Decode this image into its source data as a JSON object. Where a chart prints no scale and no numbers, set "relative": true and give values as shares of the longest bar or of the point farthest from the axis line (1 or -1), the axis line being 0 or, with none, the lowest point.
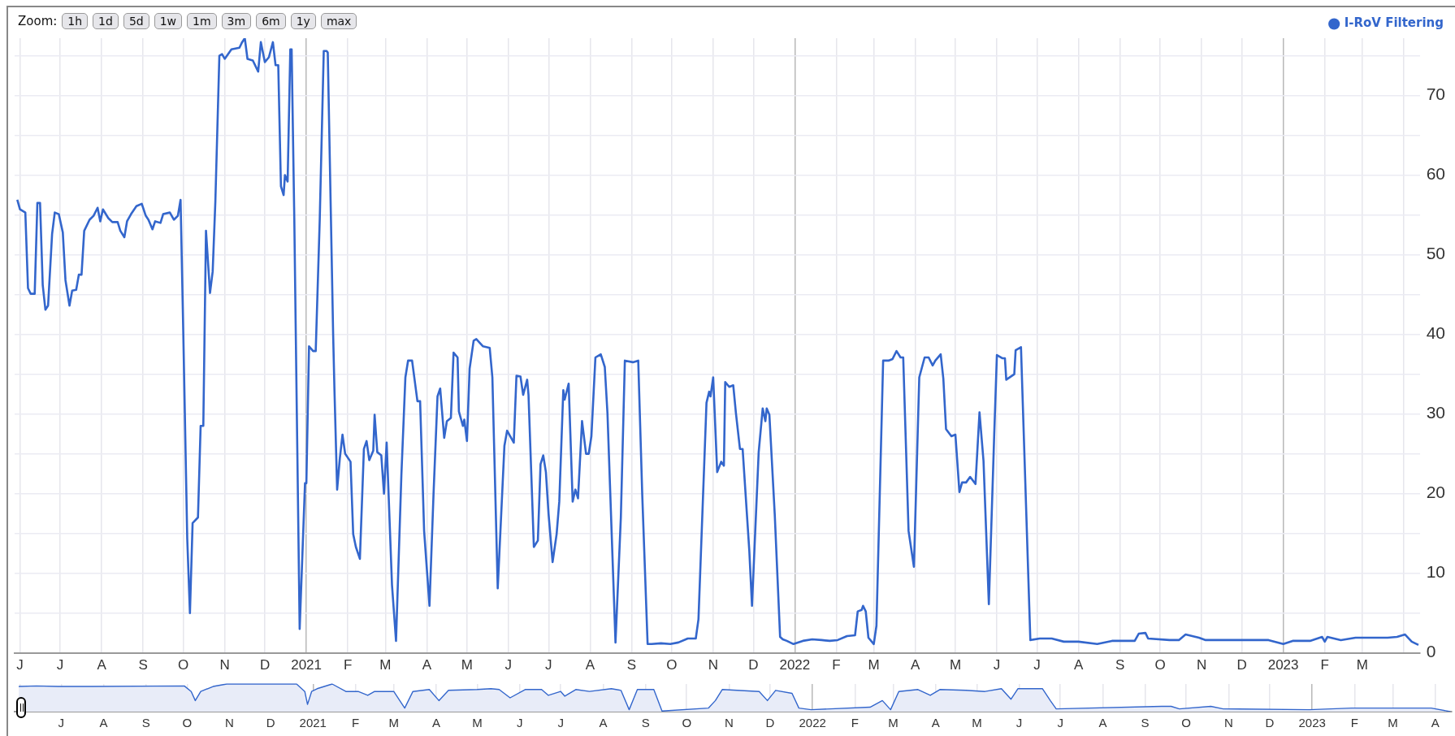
{
  "chart_data": [
    {
      "type": "line",
      "annotations": [
        "Zoom:",
        "1h",
        "1d",
        "5d",
        "1w",
        "1m",
        "3m",
        "6m",
        "1y",
        "max"
      ],
      "legend": "top right",
      "grid": true,
      "xlim": [
        "2020-05-28",
        "2023-04-13"
      ],
      "xticks": [
        {
          "value": "2020-06-01",
          "label": "J"
        },
        {
          "value": "2020-07-01",
          "label": "J"
        },
        {
          "value": "2020-08-01",
          "label": "A"
        },
        {
          "value": "2020-09-01",
          "label": "S"
        },
        {
          "value": "2020-10-01",
          "label": "O"
        },
        {
          "value": "2020-11-01",
          "label": "N"
        },
        {
          "value": "2020-12-01",
          "label": "D"
        },
        {
          "value": "2021-01-01",
          "label": "2021"
        },
        {
          "value": "2021-02-01",
          "label": "F"
        },
        {
          "value": "2021-03-01",
          "label": "M"
        },
        {
          "value": "2021-04-01",
          "label": "A"
        },
        {
          "value": "2021-05-01",
          "label": "M"
        },
        {
          "value": "2021-06-01",
          "label": "J"
        },
        {
          "value": "2021-07-01",
          "label": "J"
        },
        {
          "value": "2021-08-01",
          "label": "A"
        },
        {
          "value": "2021-09-01",
          "label": "S"
        },
        {
          "value": "2021-10-01",
          "label": "O"
        },
        {
          "value": "2021-11-01",
          "label": "N"
        },
        {
          "value": "2021-12-01",
          "label": "D"
        },
        {
          "value": "2022-01-01",
          "label": "2022"
        },
        {
          "value": "2022-02-01",
          "label": "F"
        },
        {
          "value": "2022-03-01",
          "label": "M"
        },
        {
          "value": "2022-04-01",
          "label": "A"
        },
        {
          "value": "2022-05-01",
          "label": "M"
        },
        {
          "value": "2022-06-01",
          "label": "J"
        },
        {
          "value": "2022-07-01",
          "label": "J"
        },
        {
          "value": "2022-08-01",
          "label": "A"
        },
        {
          "value": "2022-09-01",
          "label": "S"
        },
        {
          "value": "2022-10-01",
          "label": "O"
        },
        {
          "value": "2022-11-01",
          "label": "N"
        },
        {
          "value": "2022-12-01",
          "label": "D"
        },
        {
          "value": "2023-01-01",
          "label": "2023"
        },
        {
          "value": "2023-02-01",
          "label": "F"
        },
        {
          "value": "2023-03-01",
          "label": "M"
        },
        {
          "value": "2023-04-01",
          "label": null
        }
      ],
      "ylim": [
        0,
        77.2
      ],
      "yticks": [
        0,
        {
          "value": 5,
          "label": null
        },
        10,
        {
          "value": 15,
          "label": null
        },
        20,
        {
          "value": 25,
          "label": null
        },
        30,
        {
          "value": 35,
          "label": null
        },
        40,
        {
          "value": 45,
          "label": null
        },
        50,
        {
          "value": 55,
          "label": null
        },
        60,
        {
          "value": 65,
          "label": null
        },
        70,
        {
          "value": 75,
          "label": null
        }
      ],
      "series": [
        {
          "name": "I-RoV Filtering",
          "color": "#3366cc",
          "x": [
            "2020-05-30",
            "2020-06-01",
            "2020-06-05",
            "2020-06-07",
            "2020-06-09",
            "2020-06-12",
            "2020-06-14",
            "2020-06-16",
            "2020-06-18",
            "2020-06-20",
            "2020-06-22",
            "2020-06-25",
            "2020-06-27",
            "2020-06-30",
            "2020-07-03",
            "2020-07-05",
            "2020-07-08",
            "2020-07-10",
            "2020-07-13",
            "2020-07-15",
            "2020-07-17",
            "2020-07-19",
            "2020-07-23",
            "2020-07-26",
            "2020-07-29",
            "2020-07-31",
            "2020-08-02",
            "2020-08-06",
            "2020-08-09",
            "2020-08-13",
            "2020-08-15",
            "2020-08-18",
            "2020-08-20",
            "2020-08-23",
            "2020-08-27",
            "2020-08-31",
            "2020-09-03",
            "2020-09-05",
            "2020-09-08",
            "2020-09-10",
            "2020-09-14",
            "2020-09-16",
            "2020-09-21",
            "2020-09-24",
            "2020-09-27",
            "2020-09-29",
            "2020-10-01",
            "2020-10-04",
            "2020-10-06",
            "2020-10-08",
            "2020-10-12",
            "2020-10-14",
            "2020-10-16",
            "2020-10-18",
            "2020-10-21",
            "2020-10-23",
            "2020-10-25",
            "2020-10-28",
            "2020-10-30",
            "2020-11-01",
            "2020-11-06",
            "2020-11-12",
            "2020-11-14",
            "2020-11-16",
            "2020-11-18",
            "2020-11-22",
            "2020-11-26",
            "2020-11-28",
            "2020-12-01",
            "2020-12-04",
            "2020-12-07",
            "2020-12-09",
            "2020-12-11",
            "2020-12-13",
            "2020-12-15",
            "2020-12-16",
            "2020-12-18",
            "2020-12-20",
            "2020-12-21",
            "2020-12-23",
            "2020-12-24",
            "2020-12-27",
            "2020-12-31",
            "2021-01-01",
            "2021-01-03",
            "2021-01-06",
            "2021-01-08",
            "2021-01-11",
            "2021-01-14",
            "2021-01-16",
            "2021-01-17",
            "2021-01-21",
            "2021-01-22",
            "2021-01-24",
            "2021-01-26",
            "2021-01-28",
            "2021-01-30",
            "2021-02-03",
            "2021-02-05",
            "2021-02-07",
            "2021-02-10",
            "2021-02-13",
            "2021-02-15",
            "2021-02-17",
            "2021-02-20",
            "2021-02-21",
            "2021-02-23",
            "2021-02-26",
            "2021-02-28",
            "2021-03-02",
            "2021-03-06",
            "2021-03-09",
            "2021-03-13",
            "2021-03-16",
            "2021-03-18",
            "2021-03-21",
            "2021-03-25",
            "2021-03-27",
            "2021-03-30",
            "2021-04-03",
            "2021-04-06",
            "2021-04-09",
            "2021-04-11",
            "2021-04-14",
            "2021-04-16",
            "2021-04-19",
            "2021-04-21",
            "2021-04-24",
            "2021-04-25",
            "2021-04-28",
            "2021-04-29",
            "2021-05-01",
            "2021-05-03",
            "2021-05-06",
            "2021-05-08",
            "2021-05-13",
            "2021-05-18",
            "2021-05-20",
            "2021-05-24",
            "2021-05-29",
            "2021-05-31",
            "2021-06-05",
            "2021-06-07",
            "2021-06-10",
            "2021-06-12",
            "2021-06-15",
            "2021-06-16",
            "2021-06-20",
            "2021-06-23",
            "2021-06-25",
            "2021-06-27",
            "2021-06-29",
            "2021-07-01",
            "2021-07-04",
            "2021-07-07",
            "2021-07-09",
            "2021-07-12",
            "2021-07-13",
            "2021-07-16",
            "2021-07-19",
            "2021-07-21",
            "2021-07-23",
            "2021-07-26",
            "2021-07-29",
            "2021-07-31",
            "2021-08-02",
            "2021-08-05",
            "2021-08-07",
            "2021-08-09",
            "2021-08-12",
            "2021-08-14",
            "2021-08-20",
            "2021-08-24",
            "2021-08-27",
            "2021-09-02",
            "2021-09-06",
            "2021-09-09",
            "2021-09-13",
            "2021-09-16",
            "2021-09-23",
            "2021-09-30",
            "2021-10-06",
            "2021-10-13",
            "2021-10-19",
            "2021-10-21",
            "2021-10-27",
            "2021-10-29",
            "2021-10-30",
            "2021-11-01",
            "2021-11-04",
            "2021-11-07",
            "2021-11-09",
            "2021-11-10",
            "2021-11-13",
            "2021-11-16",
            "2021-11-18",
            "2021-11-21",
            "2021-11-23",
            "2021-11-28",
            "2021-11-30",
            "2021-12-05",
            "2021-12-08",
            "2021-12-10",
            "2021-12-11",
            "2021-12-13",
            "2021-12-17",
            "2021-12-21",
            "2021-12-23",
            "2021-12-26",
            "2021-12-31",
            "2022-01-07",
            "2022-01-14",
            "2022-01-21",
            "2022-01-27",
            "2022-02-02",
            "2022-02-09",
            "2022-02-15",
            "2022-02-17",
            "2022-02-20",
            "2022-02-21",
            "2022-02-23",
            "2022-02-25",
            "2022-03-01",
            "2022-03-03",
            "2022-03-08",
            "2022-03-12",
            "2022-03-15",
            "2022-03-18",
            "2022-03-21",
            "2022-03-23",
            "2022-03-27",
            "2022-03-31",
            "2022-04-04",
            "2022-04-08",
            "2022-04-11",
            "2022-04-14",
            "2022-04-16",
            "2022-04-20",
            "2022-04-22",
            "2022-04-24",
            "2022-04-28",
            "2022-05-01",
            "2022-05-04",
            "2022-05-06",
            "2022-05-09",
            "2022-05-12",
            "2022-05-16",
            "2022-05-19",
            "2022-05-22",
            "2022-05-26",
            "2022-05-30",
            "2022-06-01",
            "2022-06-05",
            "2022-06-07",
            "2022-06-08",
            "2022-06-14",
            "2022-06-15",
            "2022-06-19",
            "2022-06-26",
            "2022-07-03",
            "2022-07-12",
            "2022-07-21",
            "2022-08-01",
            "2022-08-15",
            "2022-08-26",
            "2022-09-12",
            "2022-09-15",
            "2022-09-20",
            "2022-09-22",
            "2022-10-08",
            "2022-10-15",
            "2022-10-20",
            "2022-10-30",
            "2022-11-04",
            "2022-11-28",
            "2022-12-07",
            "2022-12-21",
            "2023-01-01",
            "2023-01-08",
            "2023-01-21",
            "2023-01-30",
            "2023-02-01",
            "2023-02-03",
            "2023-02-13",
            "2023-02-24",
            "2023-03-07",
            "2023-03-20",
            "2023-03-27",
            "2023-04-02",
            "2023-04-07",
            "2023-04-12"
          ],
          "values": [
            56.9,
            55.7,
            55.3,
            45.8,
            45.1,
            45.1,
            56.5,
            56.5,
            46.2,
            43.1,
            43.6,
            52.6,
            55.3,
            55.1,
            52.8,
            46.8,
            43.6,
            45.5,
            45.6,
            47.5,
            47.5,
            53.0,
            54.4,
            54.9,
            55.9,
            54.2,
            55.7,
            54.6,
            54.1,
            54.1,
            53.0,
            52.2,
            54.2,
            55.1,
            56.1,
            56.4,
            54.9,
            54.4,
            53.2,
            54.2,
            54.0,
            55.1,
            55.3,
            54.4,
            54.9,
            56.9,
            40.5,
            14.3,
            5.0,
            16.3,
            17.0,
            28.5,
            28.5,
            53.0,
            45.2,
            47.9,
            56.7,
            75.0,
            75.2,
            74.6,
            75.8,
            76.0,
            76.7,
            77.2,
            74.6,
            74.4,
            73.0,
            76.7,
            74.2,
            74.8,
            76.7,
            73.8,
            73.8,
            58.6,
            57.5,
            60.0,
            59.2,
            75.8,
            75.8,
            54.4,
            41.3,
            3.0,
            21.3,
            21.3,
            38.5,
            37.9,
            37.9,
            54.4,
            75.6,
            75.6,
            75.4,
            40.1,
            33.0,
            20.5,
            24.4,
            27.4,
            25.0,
            24.0,
            14.9,
            13.3,
            11.8,
            25.6,
            26.6,
            24.2,
            25.4,
            29.9,
            25.2,
            24.8,
            20.0,
            26.4,
            8.5,
            1.5,
            22.3,
            34.6,
            36.7,
            36.7,
            31.6,
            31.6,
            15.3,
            5.9,
            19.8,
            32.2,
            33.2,
            27.0,
            29.1,
            29.5,
            37.7,
            37.1,
            30.3,
            28.5,
            29.3,
            26.6,
            35.7,
            39.2,
            39.4,
            38.5,
            38.3,
            34.6,
            8.1,
            26.0,
            27.9,
            26.4,
            34.8,
            34.7,
            32.4,
            34.3,
            32.4,
            13.3,
            14.1,
            23.7,
            24.8,
            22.7,
            17.4,
            11.4,
            14.9,
            19.0,
            33.0,
            31.8,
            33.8,
            19.0,
            20.5,
            19.4,
            29.1,
            25.0,
            25.0,
            27.2,
            37.1,
            37.3,
            37.5,
            35.9,
            30.1,
            1.3,
            17.0,
            36.7,
            36.5,
            36.7,
            19.8,
            1.1,
            1.1,
            1.2,
            1.1,
            1.3,
            1.8,
            1.8,
            4.2,
            31.4,
            32.8,
            32.2,
            34.6,
            22.7,
            24.0,
            23.5,
            34.0,
            33.4,
            33.6,
            30.1,
            25.6,
            25.6,
            12.8,
            5.9,
            25.2,
            30.7,
            29.1,
            30.7,
            29.9,
            17.4,
            2.0,
            1.7,
            1.5,
            1.1,
            1.5,
            1.7,
            1.6,
            1.5,
            1.6,
            2.1,
            2.2,
            5.2,
            5.4,
            5.9,
            5.2,
            1.9,
            1.1,
            3.4,
            36.7,
            36.7,
            36.9,
            37.9,
            37.1,
            37.1,
            15.3,
            10.8,
            34.6,
            37.1,
            37.1,
            36.1,
            36.7,
            37.5,
            34.4,
            28.1,
            27.2,
            27.4,
            20.2,
            21.4,
            21.4,
            22.1,
            21.2,
            30.2,
            24.1,
            6.1,
            27.4,
            37.4,
            37.0,
            37.0,
            34.3,
            35.0,
            38.0,
            38.4,
            1.6,
            1.8,
            1.8,
            1.4,
            1.4,
            1.1,
            1.5,
            1.5,
            2.4,
            2.5,
            1.8,
            1.6,
            1.6,
            2.3,
            1.9,
            1.6,
            1.6,
            1.6,
            1.6,
            1.1,
            1.5,
            1.5,
            2.0,
            1.4,
            2.0,
            1.6,
            1.9,
            1.9,
            1.9,
            2.0,
            2.3,
            1.4,
            1.0
          ]
        }
      ]
    },
    {
      "type": "area",
      "relative": true,
      "grid": "x",
      "tick_labels": "x",
      "xlim": [
        "2020-05-28",
        "2023-04-13"
      ],
      "xticks": [
        {
          "value": "2020-06-01",
          "label": null
        },
        {
          "value": "2020-07-01",
          "label": "J"
        },
        {
          "value": "2020-08-01",
          "label": "A"
        },
        {
          "value": "2020-09-01",
          "label": "S"
        },
        {
          "value": "2020-10-01",
          "label": "O"
        },
        {
          "value": "2020-11-01",
          "label": "N"
        },
        {
          "value": "2020-12-01",
          "label": "D"
        },
        {
          "value": "2021-01-01",
          "label": "2021"
        },
        {
          "value": "2021-02-01",
          "label": "F"
        },
        {
          "value": "2021-03-01",
          "label": "M"
        },
        {
          "value": "2021-04-01",
          "label": "A"
        },
        {
          "value": "2021-05-01",
          "label": "M"
        },
        {
          "value": "2021-06-01",
          "label": "J"
        },
        {
          "value": "2021-07-01",
          "label": "J"
        },
        {
          "value": "2021-08-01",
          "label": "A"
        },
        {
          "value": "2021-09-01",
          "label": "S"
        },
        {
          "value": "2021-10-01",
          "label": "O"
        },
        {
          "value": "2021-11-01",
          "label": "N"
        },
        {
          "value": "2021-12-01",
          "label": "D"
        },
        {
          "value": "2022-01-01",
          "label": "2022"
        },
        {
          "value": "2022-02-01",
          "label": "F"
        },
        {
          "value": "2022-03-01",
          "label": "M"
        },
        {
          "value": "2022-04-01",
          "label": "A"
        },
        {
          "value": "2022-05-01",
          "label": "M"
        },
        {
          "value": "2022-06-01",
          "label": "J"
        },
        {
          "value": "2022-07-01",
          "label": "J"
        },
        {
          "value": "2022-08-01",
          "label": "A"
        },
        {
          "value": "2022-09-01",
          "label": "S"
        },
        {
          "value": "2022-10-01",
          "label": "O"
        },
        {
          "value": "2022-11-01",
          "label": "N"
        },
        {
          "value": "2022-12-01",
          "label": "D"
        },
        {
          "value": "2023-01-01",
          "label": "2023"
        },
        {
          "value": "2023-02-01",
          "label": "F"
        },
        {
          "value": "2023-03-01",
          "label": "M"
        },
        {
          "value": "2023-04-01",
          "label": "A"
        }
      ],
      "series": [
        {
          "color": "#3366cc",
          "x": [
            "2020-05-31",
            "2020-06-13",
            "2020-06-29",
            "2020-07-23",
            "2020-09-29",
            "2020-10-04",
            "2020-10-07",
            "2020-10-11",
            "2020-10-20",
            "2020-10-30",
            "2020-12-20",
            "2020-12-26",
            "2020-12-28",
            "2020-12-31",
            "2021-01-04",
            "2021-01-15",
            "2021-01-25",
            "2021-02-03",
            "2021-02-10",
            "2021-02-15",
            "2021-03-01",
            "2021-03-09",
            "2021-03-15",
            "2021-03-27",
            "2021-04-03",
            "2021-04-10",
            "2021-05-01",
            "2021-05-11",
            "2021-05-17",
            "2021-05-25",
            "2021-06-05",
            "2021-06-17",
            "2021-06-22",
            "2021-07-01",
            "2021-07-04",
            "2021-07-12",
            "2021-07-22",
            "2021-08-07",
            "2021-08-14",
            "2021-08-20",
            "2021-08-26",
            "2021-09-07",
            "2021-09-13",
            "2021-10-17",
            "2021-10-22",
            "2021-10-27",
            "2021-11-23",
            "2021-11-29",
            "2021-12-05",
            "2021-12-17",
            "2021-12-22",
            "2021-12-31",
            "2022-02-12",
            "2022-02-21",
            "2022-02-27",
            "2022-03-05",
            "2022-03-19",
            "2022-03-28",
            "2022-04-04",
            "2022-04-23",
            "2022-05-07",
            "2022-05-19",
            "2022-05-26",
            "2022-05-31",
            "2022-06-18",
            "2022-06-24",
            "2022-06-28",
            "2022-09-13",
            "2022-09-20",
            "2022-09-26",
            "2022-10-19",
            "2022-10-28",
            "2022-12-30",
            "2023-01-30",
            "2023-03-29",
            "2023-04-12"
          ],
          "values": [
            0.91,
            0.93,
            0.91,
            0.91,
            0.93,
            0.73,
            0.4,
            0.73,
            0.91,
            1.0,
            1.0,
            0.73,
            0.26,
            0.73,
            0.83,
            1.0,
            0.73,
            0.73,
            0.59,
            0.73,
            0.73,
            0.13,
            0.73,
            0.8,
            0.4,
            0.77,
            0.8,
            0.83,
            0.8,
            0.5,
            0.8,
            0.8,
            0.59,
            0.73,
            0.56,
            0.8,
            0.73,
            0.83,
            0.77,
            0.07,
            0.8,
            0.8,
            0.02,
            0.13,
            0.4,
            0.8,
            0.73,
            0.4,
            0.77,
            0.66,
            0.13,
            0.07,
            0.16,
            0.4,
            0.07,
            0.73,
            0.8,
            0.59,
            0.8,
            0.77,
            0.73,
            0.83,
            0.45,
            0.83,
            0.83,
            0.38,
            0.1,
            0.19,
            0.19,
            0.1,
            0.19,
            0.1,
            0.07,
            0.13,
            0.13,
            0.0
          ]
        }
      ]
    }
  ]
}
